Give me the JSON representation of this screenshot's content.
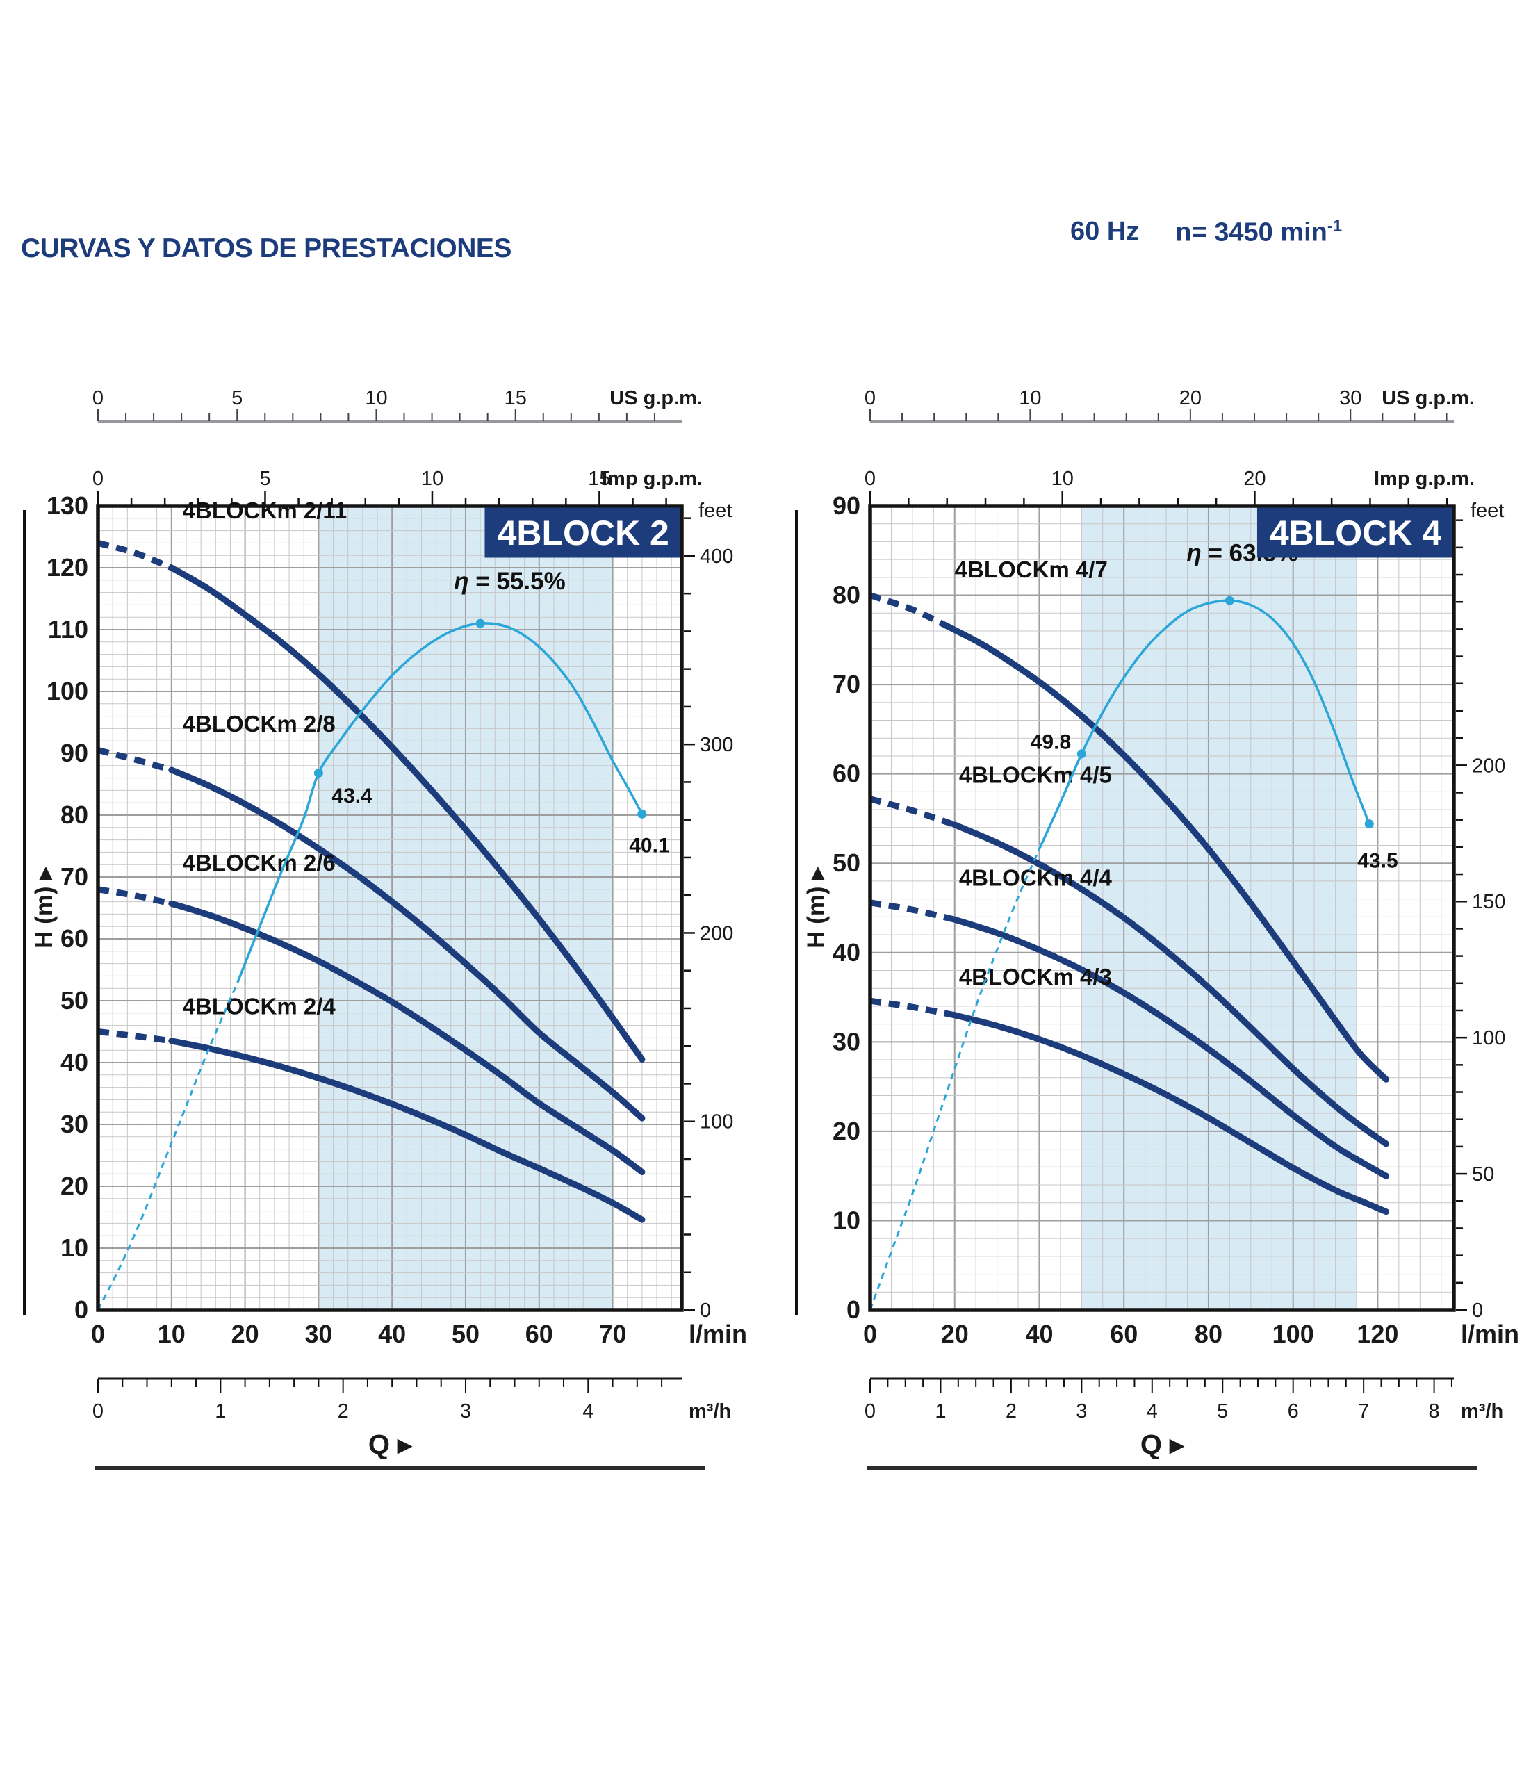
{
  "header": {
    "title": "CURVAS Y DATOS DE PRESTACIONES",
    "frequency": "60 Hz",
    "speed_prefix": "n= 3450 min",
    "speed_exponent": "-1"
  },
  "colors": {
    "navy": "#1d3c7c",
    "cyan": "#2aa6d9",
    "band": "#d8eaf4",
    "grid_minor": "#c7c7c7",
    "grid_major": "#9e9e9e",
    "border": "#141414",
    "ruler": "#95999d",
    "text": "#1a1a1a",
    "badge_text": "#ffffff"
  },
  "chart_data": [
    {
      "type": "line",
      "title": "4BLOCK 2",
      "xlabel": "Q",
      "ylabel": "H (m)",
      "x_unit": "l/min",
      "xlim": [
        0,
        79.4
      ],
      "ylim": [
        0,
        130
      ],
      "x_axis_labels": [
        0,
        10,
        20,
        30,
        40,
        50,
        60,
        70
      ],
      "y_tick_step": 10,
      "grid": {
        "x_minor": 2,
        "x_major": 10,
        "y_minor": 2,
        "y_major": 10
      },
      "operating_range": [
        30,
        70
      ],
      "badge_from_q": 52.6,
      "top_scales": {
        "us_gpm": {
          "label": "US g.p.m.",
          "lmin_per_unit": 3.7854,
          "tick_step": 1,
          "labeled": [
            0,
            5,
            10,
            15
          ]
        },
        "imp_gpm": {
          "label": "Imp g.p.m.",
          "lmin_per_unit": 4.5461,
          "tick_step": 1,
          "labeled": [
            0,
            5,
            10,
            15
          ]
        }
      },
      "bottom_scale": {
        "label": "m³/h",
        "lmin_per_unit": 16.6667,
        "tick_step": 0.2,
        "labeled": [
          0,
          1,
          2,
          3,
          4
        ]
      },
      "right_scale": {
        "label": "feet",
        "m_per_unit": 0.3048,
        "tick_step": 20,
        "labeled": [
          0,
          100,
          200,
          300,
          400
        ]
      },
      "series": [
        {
          "name": "4BLOCKm 2/11",
          "dashed_until": 10,
          "label_pos": [
            11.5,
            128
          ],
          "points": [
            [
              0,
              124
            ],
            [
              5,
              122.4
            ],
            [
              10,
              120
            ],
            [
              15,
              116.6
            ],
            [
              20,
              112.4
            ],
            [
              25,
              107.9
            ],
            [
              30,
              102.8
            ],
            [
              35,
              97.1
            ],
            [
              40,
              91
            ],
            [
              45,
              84.5
            ],
            [
              50,
              77.7
            ],
            [
              55,
              70.6
            ],
            [
              60,
              63.2
            ],
            [
              65,
              55.4
            ],
            [
              70,
              47.2
            ],
            [
              74,
              40.5
            ]
          ]
        },
        {
          "name": "4BLOCKm 2/8",
          "dashed_until": 10,
          "label_pos": [
            11.5,
            93.5
          ],
          "points": [
            [
              0,
              90.5
            ],
            [
              5,
              89
            ],
            [
              10,
              87.3
            ],
            [
              15,
              84.8
            ],
            [
              20,
              81.8
            ],
            [
              25,
              78.4
            ],
            [
              30,
              74.6
            ],
            [
              35,
              70.5
            ],
            [
              40,
              66
            ],
            [
              45,
              61.2
            ],
            [
              50,
              56
            ],
            [
              55,
              50.6
            ],
            [
              60,
              44.8
            ],
            [
              65,
              40
            ],
            [
              70,
              35.2
            ],
            [
              74,
              31
            ]
          ]
        },
        {
          "name": "4BLOCKm 2/6",
          "dashed_until": 10,
          "label_pos": [
            11.5,
            71
          ],
          "points": [
            [
              0,
              68
            ],
            [
              5,
              67
            ],
            [
              10,
              65.7
            ],
            [
              15,
              63.9
            ],
            [
              20,
              61.7
            ],
            [
              25,
              59.2
            ],
            [
              30,
              56.4
            ],
            [
              35,
              53.2
            ],
            [
              40,
              49.8
            ],
            [
              45,
              46
            ],
            [
              50,
              42
            ],
            [
              55,
              37.8
            ],
            [
              60,
              33.4
            ],
            [
              65,
              29.6
            ],
            [
              70,
              25.8
            ],
            [
              74,
              22.3
            ]
          ]
        },
        {
          "name": "4BLOCKm 2/4",
          "dashed_until": 10,
          "label_pos": [
            11.5,
            47.8
          ],
          "points": [
            [
              0,
              45
            ],
            [
              5,
              44.3
            ],
            [
              10,
              43.5
            ],
            [
              15,
              42.3
            ],
            [
              20,
              40.9
            ],
            [
              25,
              39.3
            ],
            [
              30,
              37.5
            ],
            [
              35,
              35.5
            ],
            [
              40,
              33.3
            ],
            [
              45,
              30.9
            ],
            [
              50,
              28.3
            ],
            [
              55,
              25.5
            ],
            [
              60,
              22.9
            ],
            [
              65,
              20.2
            ],
            [
              70,
              17.3
            ],
            [
              74,
              14.6
            ]
          ]
        }
      ],
      "efficiency": {
        "dashed_until": 19,
        "points": [
          [
            0,
            0
          ],
          [
            3,
            7
          ],
          [
            6,
            15
          ],
          [
            9,
            24
          ],
          [
            12,
            33
          ],
          [
            15,
            42
          ],
          [
            19,
            53
          ],
          [
            22,
            62
          ],
          [
            25,
            71
          ],
          [
            28,
            79.5
          ],
          [
            30,
            86.8
          ],
          [
            33,
            92.2
          ],
          [
            36,
            97
          ],
          [
            40,
            102.6
          ],
          [
            44,
            106.8
          ],
          [
            48,
            109.7
          ],
          [
            52,
            111
          ],
          [
            56,
            110.3
          ],
          [
            60,
            107.2
          ],
          [
            64,
            101.8
          ],
          [
            67,
            95.8
          ],
          [
            70,
            88.8
          ],
          [
            72,
            84.6
          ],
          [
            74,
            80.2
          ]
        ],
        "markers": [
          {
            "q": 30,
            "h": 86.8,
            "label": "43.4",
            "anchor": "start",
            "label_pos": [
              31.8,
              82
            ]
          },
          {
            "q": 52,
            "h": 111,
            "eta": "55.5",
            "anchor": "middle",
            "label_pos": [
              56,
              116.5
            ]
          },
          {
            "q": 74,
            "h": 80.2,
            "label": "40.1",
            "anchor": "middle",
            "label_pos": [
              75,
              74
            ]
          }
        ]
      }
    },
    {
      "type": "line",
      "title": "4BLOCK 4",
      "xlabel": "Q",
      "ylabel": "H (m)",
      "x_unit": "l/min",
      "xlim": [
        0,
        138
      ],
      "ylim": [
        0,
        90
      ],
      "x_axis_labels": [
        0,
        20,
        40,
        60,
        80,
        100,
        120
      ],
      "y_tick_step": 10,
      "grid": {
        "x_minor": 5,
        "x_major": 20,
        "y_minor": 2,
        "y_major": 10
      },
      "operating_range": [
        50,
        115
      ],
      "badge_from_q": 91.5,
      "top_scales": {
        "us_gpm": {
          "label": "US g.p.m.",
          "lmin_per_unit": 3.7854,
          "tick_step": 2,
          "labeled": [
            0,
            10,
            20,
            30
          ]
        },
        "imp_gpm": {
          "label": "Imp g.p.m.",
          "lmin_per_unit": 4.5461,
          "tick_step": 2,
          "labeled": [
            0,
            10,
            20
          ]
        }
      },
      "bottom_scale": {
        "label": "m³/h",
        "lmin_per_unit": 16.6667,
        "tick_step": 0.25,
        "labeled": [
          0,
          1,
          2,
          3,
          4,
          5,
          6,
          7,
          8
        ]
      },
      "right_scale": {
        "label": "feet",
        "m_per_unit": 0.3048,
        "tick_step": 10,
        "labeled": [
          0,
          50,
          100,
          150,
          200
        ]
      },
      "series": [
        {
          "name": "4BLOCKm 4/7",
          "dashed_until": 18,
          "label_pos": [
            20,
            82
          ],
          "points": [
            [
              0,
              80
            ],
            [
              10,
              78.4
            ],
            [
              18,
              76.6
            ],
            [
              25,
              74.9
            ],
            [
              30,
              73.5
            ],
            [
              40,
              70.3
            ],
            [
              50,
              66.5
            ],
            [
              60,
              62.1
            ],
            [
              70,
              57.1
            ],
            [
              80,
              51.6
            ],
            [
              90,
              45.5
            ],
            [
              100,
              39
            ],
            [
              110,
              32.4
            ],
            [
              116,
              28.6
            ],
            [
              122,
              25.8
            ]
          ]
        },
        {
          "name": "4BLOCKm 4/5",
          "dashed_until": 20,
          "label_pos": [
            21,
            59
          ],
          "points": [
            [
              0,
              57.2
            ],
            [
              10,
              55.9
            ],
            [
              20,
              54.3
            ],
            [
              30,
              52.3
            ],
            [
              40,
              49.9
            ],
            [
              50,
              47.1
            ],
            [
              60,
              43.9
            ],
            [
              70,
              40.2
            ],
            [
              80,
              36.1
            ],
            [
              90,
              31.6
            ],
            [
              100,
              27
            ],
            [
              110,
              22.8
            ],
            [
              116,
              20.6
            ],
            [
              122,
              18.6
            ]
          ]
        },
        {
          "name": "4BLOCKm 4/4",
          "dashed_until": 20,
          "label_pos": [
            21,
            47.5
          ],
          "points": [
            [
              0,
              45.6
            ],
            [
              10,
              44.8
            ],
            [
              20,
              43.7
            ],
            [
              30,
              42.2
            ],
            [
              40,
              40.3
            ],
            [
              50,
              38.1
            ],
            [
              60,
              35.5
            ],
            [
              70,
              32.5
            ],
            [
              80,
              29.2
            ],
            [
              90,
              25.6
            ],
            [
              100,
              21.8
            ],
            [
              110,
              18.3
            ],
            [
              116,
              16.6
            ],
            [
              122,
              15
            ]
          ]
        },
        {
          "name": "4BLOCKm 4/3",
          "dashed_until": 20,
          "label_pos": [
            21,
            36.4
          ],
          "points": [
            [
              0,
              34.6
            ],
            [
              10,
              33.9
            ],
            [
              20,
              33
            ],
            [
              30,
              31.8
            ],
            [
              40,
              30.3
            ],
            [
              50,
              28.5
            ],
            [
              60,
              26.4
            ],
            [
              70,
              24.1
            ],
            [
              80,
              21.5
            ],
            [
              90,
              18.7
            ],
            [
              100,
              15.9
            ],
            [
              110,
              13.4
            ],
            [
              116,
              12.2
            ],
            [
              122,
              11
            ]
          ]
        }
      ],
      "efficiency": {
        "dashed_until": 40,
        "points": [
          [
            0,
            0
          ],
          [
            5,
            6.5
          ],
          [
            10,
            13
          ],
          [
            15,
            20
          ],
          [
            20,
            27
          ],
          [
            25,
            34
          ],
          [
            30,
            40.3
          ],
          [
            35,
            46.2
          ],
          [
            40,
            51.6
          ],
          [
            45,
            56.8
          ],
          [
            50,
            62.25
          ],
          [
            55,
            66.9
          ],
          [
            60,
            70.8
          ],
          [
            65,
            74
          ],
          [
            70,
            76.4
          ],
          [
            75,
            78.2
          ],
          [
            80,
            79.1
          ],
          [
            85,
            79.4
          ],
          [
            90,
            78.9
          ],
          [
            95,
            77.4
          ],
          [
            100,
            74.6
          ],
          [
            105,
            70.3
          ],
          [
            110,
            64.5
          ],
          [
            114,
            59.3
          ],
          [
            118,
            54.4
          ]
        ],
        "markers": [
          {
            "q": 50,
            "h": 62.25,
            "label": "49.8",
            "anchor": "end",
            "label_pos": [
              47.5,
              62.8
            ]
          },
          {
            "q": 85,
            "h": 79.4,
            "eta": "63.5",
            "anchor": "middle",
            "label_pos": [
              88,
              83.8
            ]
          },
          {
            "q": 118,
            "h": 54.4,
            "label": "43.5",
            "anchor": "middle",
            "label_pos": [
              120,
              49.5
            ]
          }
        ]
      }
    }
  ]
}
